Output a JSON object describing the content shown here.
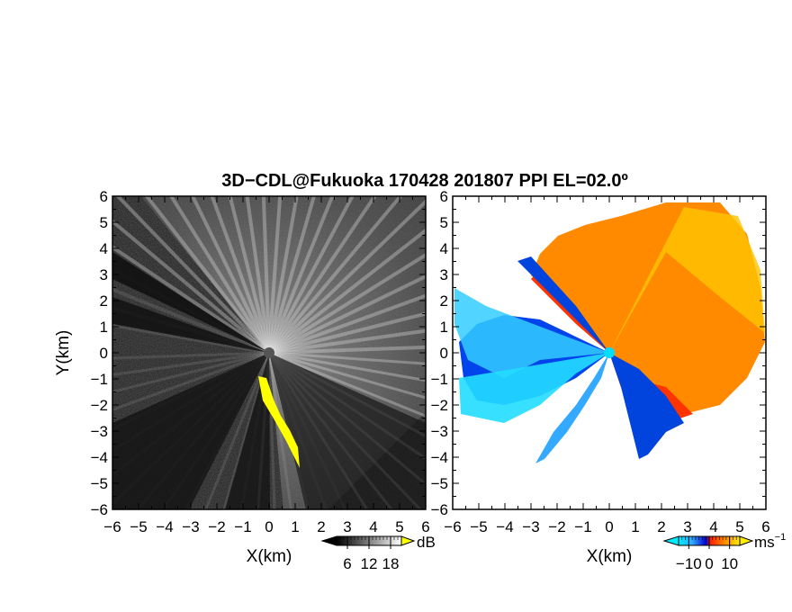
{
  "chart_data": [
    {
      "type": "heatmap",
      "panel": "left",
      "title": "3D−CDL@Fukuoka 170428 201807 PPI EL=02.0º",
      "xlabel": "X(km)",
      "ylabel": "Y(km)",
      "xlim": [
        -6,
        6
      ],
      "ylim": [
        -6,
        6
      ],
      "x_ticks": [
        "−6",
        "−5",
        "−4",
        "−3",
        "−2",
        "−1",
        "0",
        "1",
        "2",
        "3",
        "4",
        "5",
        "6"
      ],
      "y_ticks": [
        "6",
        "5",
        "4",
        "3",
        "2",
        "1",
        "0",
        "−1",
        "−2",
        "−3",
        "−4",
        "−5",
        "−6"
      ],
      "colormap": "grayscale",
      "colorbar": {
        "unit": "dB",
        "ticks": [
          "6",
          "12",
          "18"
        ],
        "range": [
          3,
          21
        ]
      },
      "highlight_color": "#ffff00"
    },
    {
      "type": "heatmap",
      "panel": "right",
      "xlabel": "X(km)",
      "xlim": [
        -6,
        6
      ],
      "ylim": [
        -6,
        6
      ],
      "x_ticks": [
        "−6",
        "−5",
        "−4",
        "−3",
        "−2",
        "−1",
        "0",
        "1",
        "2",
        "3",
        "4",
        "5",
        "6"
      ],
      "y_ticks": [
        "6",
        "5",
        "4",
        "3",
        "2",
        "1",
        "0",
        "−1",
        "−2",
        "−3",
        "−4",
        "−5",
        "−6"
      ],
      "colormap": "cyan-blue-red-orange-yellow",
      "colorbar": {
        "unit": "ms",
        "unit_exp": "−1",
        "ticks": [
          "−10",
          "0",
          "10"
        ],
        "range": [
          -15,
          15
        ]
      }
    }
  ]
}
